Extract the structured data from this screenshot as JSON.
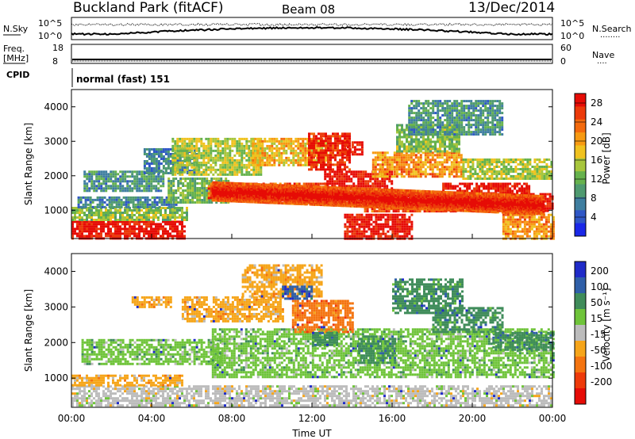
{
  "header": {
    "station": "Buckland Park (fitACF)",
    "beam": "Beam 08",
    "date": "13/Dec/2014"
  },
  "top_panels": {
    "nsky_label": "N.Sky",
    "nsky_ticks": [
      "10^5",
      "10^0"
    ],
    "nsearch_label": "N.Search",
    "nsearch_ticks": [
      "10^5",
      "10^0"
    ],
    "freq_label": "Freq.",
    "freq_unit": "[MHz]",
    "freq_ticks": [
      "18",
      "8"
    ],
    "nave_label": "Nave",
    "nave_ticks": [
      "60",
      "0"
    ],
    "cpid_label": "CPID",
    "cpid_text": "normal (fast) 151"
  },
  "chart_data": [
    {
      "type": "heatmap",
      "name": "power",
      "xlabel": "",
      "ylabel": "Slant Range [km]",
      "x_range_hours": [
        0,
        24
      ],
      "y_range_km": [
        180,
        4500
      ],
      "yticks": [
        "1000",
        "2000",
        "3000",
        "4000"
      ],
      "colorbar": {
        "label": "Power [dB]",
        "ticks": [
          "4",
          "8",
          "12",
          "16",
          "20",
          "24",
          "28"
        ],
        "range": [
          0,
          30
        ],
        "colors": [
          "#1a28e8",
          "#2f57c6",
          "#3f7ea0",
          "#4f9a70",
          "#66b24d",
          "#a8c63c",
          "#f0c21f",
          "#f79a12",
          "#f36a0d",
          "#ec3a0a",
          "#e60c06"
        ]
      },
      "regions": [
        {
          "t0": 0,
          "t1": 5.6,
          "r0": 200,
          "r1": 700,
          "value": 29
        },
        {
          "t0": 0,
          "t1": 5.8,
          "r0": 700,
          "r1": 1100,
          "value": 14
        },
        {
          "t0": 0.3,
          "t1": 5.2,
          "r0": 1100,
          "r1": 1400,
          "value": 8
        },
        {
          "t0": 0.6,
          "t1": 4.6,
          "r0": 1550,
          "r1": 2150,
          "value": 9
        },
        {
          "t0": 3.6,
          "t1": 6.3,
          "r0": 2100,
          "r1": 2800,
          "value": 7
        },
        {
          "t0": 4.8,
          "t1": 7.8,
          "r0": 1200,
          "r1": 1950,
          "value": 12
        },
        {
          "t0": 5.0,
          "t1": 9.5,
          "r0": 2000,
          "r1": 3100,
          "value": 15
        },
        {
          "t0": 6.8,
          "t1": 12.8,
          "r0": 1350,
          "r1": 1800,
          "value": 25
        },
        {
          "t0": 9.0,
          "t1": 12.8,
          "r0": 2300,
          "r1": 3100,
          "value": 19
        },
        {
          "t0": 11.8,
          "t1": 13.9,
          "r0": 2150,
          "r1": 3250,
          "value": 28
        },
        {
          "t0": 12.6,
          "t1": 16.0,
          "r0": 1400,
          "r1": 2150,
          "value": 29
        },
        {
          "t0": 13.6,
          "t1": 17.0,
          "r0": 200,
          "r1": 900,
          "value": 29
        },
        {
          "t0": 14.6,
          "t1": 19.2,
          "r0": 950,
          "r1": 1350,
          "value": 25
        },
        {
          "t0": 15.0,
          "t1": 19.5,
          "r0": 1950,
          "r1": 2700,
          "value": 21
        },
        {
          "t0": 16.2,
          "t1": 19.4,
          "r0": 2700,
          "r1": 3500,
          "value": 13
        },
        {
          "t0": 16.8,
          "t1": 21.5,
          "r0": 3200,
          "r1": 4200,
          "value": 9
        },
        {
          "t0": 18.5,
          "t1": 22.8,
          "r0": 1200,
          "r1": 1800,
          "value": 29
        },
        {
          "t0": 20.5,
          "t1": 24.0,
          "r0": 950,
          "r1": 1500,
          "value": 29
        },
        {
          "t0": 19.5,
          "t1": 24.0,
          "r0": 1900,
          "r1": 2500,
          "value": 15
        },
        {
          "t0": 21.5,
          "t1": 24.0,
          "r0": 200,
          "r1": 900,
          "value": 21
        },
        {
          "t0": 13.5,
          "t1": 14.5,
          "r0": 2600,
          "r1": 3000,
          "value": 29
        }
      ],
      "bands": [
        {
          "t0": 7.0,
          "t1": 23.5,
          "r_start": 1580,
          "r_end": 1180,
          "value": 30
        }
      ]
    },
    {
      "type": "heatmap",
      "name": "velocity",
      "xlabel": "Time UT",
      "ylabel": "Slant Range [km]",
      "x_range_hours": [
        0,
        24
      ],
      "y_range_km": [
        180,
        4500
      ],
      "xticks": [
        "00:00",
        "04:00",
        "08:00",
        "12:00",
        "16:00",
        "20:00",
        "00:00"
      ],
      "yticks": [
        "1000",
        "2000",
        "3000",
        "4000"
      ],
      "colorbar": {
        "label": "Velocity [m s⁻¹]",
        "ticks": [
          "200",
          "100",
          "50",
          "15",
          "-15",
          "-50",
          "-100",
          "-200"
        ],
        "colors": [
          "#1f2bc8",
          "#2f5fa8",
          "#3f8c5a",
          "#6fc43a",
          "#bcbcbc",
          "#f6a51a",
          "#f47410",
          "#ee3a0a",
          "#e60c06"
        ]
      },
      "regions": [
        {
          "t0": 0,
          "t1": 24.0,
          "r0": 200,
          "r1": 800,
          "value": "-15"
        },
        {
          "t0": 0,
          "t1": 5.5,
          "r0": 800,
          "r1": 1100,
          "value": "-50"
        },
        {
          "t0": 0.5,
          "t1": 7.5,
          "r0": 1400,
          "r1": 2100,
          "value": "15"
        },
        {
          "t0": 7.0,
          "t1": 24.0,
          "r0": 1000,
          "r1": 2400,
          "value": "15"
        },
        {
          "t0": 5.5,
          "t1": 10.5,
          "r0": 2600,
          "r1": 3300,
          "value": "-50"
        },
        {
          "t0": 8.5,
          "t1": 12.5,
          "r0": 3300,
          "r1": 4200,
          "value": "-50"
        },
        {
          "t0": 11.0,
          "t1": 14.0,
          "r0": 2300,
          "r1": 3200,
          "value": "-100"
        },
        {
          "t0": 12.0,
          "t1": 13.3,
          "r0": 1900,
          "r1": 2300,
          "value": "50"
        },
        {
          "t0": 14.3,
          "t1": 16.2,
          "r0": 1400,
          "r1": 2200,
          "value": "50"
        },
        {
          "t0": 16.0,
          "t1": 19.5,
          "r0": 2800,
          "r1": 3800,
          "value": "50"
        },
        {
          "t0": 18.0,
          "t1": 21.5,
          "r0": 2300,
          "r1": 3000,
          "value": "50"
        },
        {
          "t0": 3.0,
          "t1": 5.0,
          "r0": 3000,
          "r1": 3300,
          "value": "-50"
        },
        {
          "t0": 10.5,
          "t1": 12.0,
          "r0": 3200,
          "r1": 3600,
          "value": "100"
        },
        {
          "t0": 21.0,
          "t1": 24.0,
          "r0": 1800,
          "r1": 2300,
          "value": "50"
        }
      ]
    }
  ]
}
